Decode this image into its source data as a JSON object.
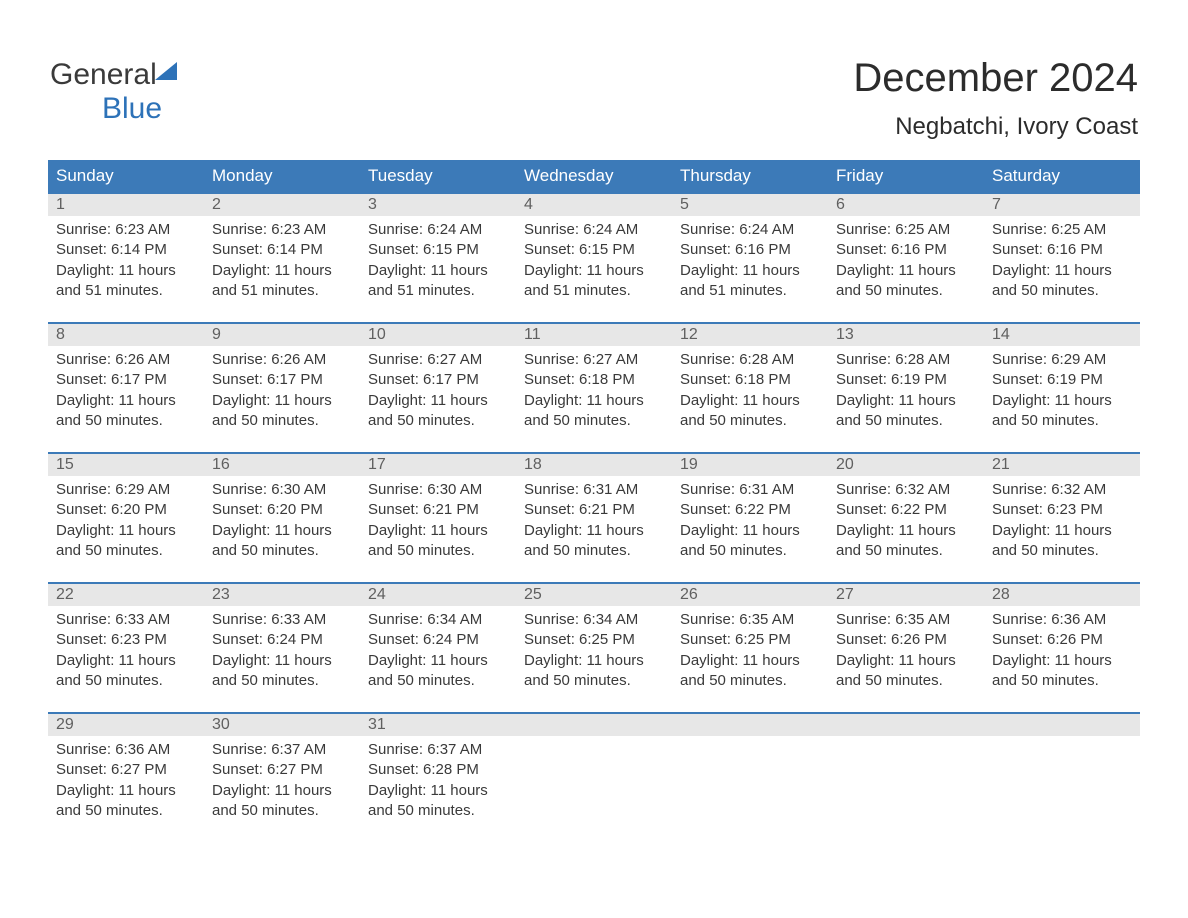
{
  "logo": {
    "word1": "General",
    "word2": "Blue"
  },
  "title": "December 2024",
  "location": "Negbatchi, Ivory Coast",
  "colors": {
    "header_bg": "#3c7ab8",
    "header_fg": "#ffffff",
    "daynum_bg": "#e7e7e7",
    "week_border": "#3c7ab8",
    "text": "#3a3a3a",
    "logo_blue": "#2d72b8"
  },
  "day_names": [
    "Sunday",
    "Monday",
    "Tuesday",
    "Wednesday",
    "Thursday",
    "Friday",
    "Saturday"
  ],
  "weeks": [
    [
      {
        "n": "1",
        "sr": "Sunrise: 6:23 AM",
        "ss": "Sunset: 6:14 PM",
        "d1": "Daylight: 11 hours",
        "d2": "and 51 minutes."
      },
      {
        "n": "2",
        "sr": "Sunrise: 6:23 AM",
        "ss": "Sunset: 6:14 PM",
        "d1": "Daylight: 11 hours",
        "d2": "and 51 minutes."
      },
      {
        "n": "3",
        "sr": "Sunrise: 6:24 AM",
        "ss": "Sunset: 6:15 PM",
        "d1": "Daylight: 11 hours",
        "d2": "and 51 minutes."
      },
      {
        "n": "4",
        "sr": "Sunrise: 6:24 AM",
        "ss": "Sunset: 6:15 PM",
        "d1": "Daylight: 11 hours",
        "d2": "and 51 minutes."
      },
      {
        "n": "5",
        "sr": "Sunrise: 6:24 AM",
        "ss": "Sunset: 6:16 PM",
        "d1": "Daylight: 11 hours",
        "d2": "and 51 minutes."
      },
      {
        "n": "6",
        "sr": "Sunrise: 6:25 AM",
        "ss": "Sunset: 6:16 PM",
        "d1": "Daylight: 11 hours",
        "d2": "and 50 minutes."
      },
      {
        "n": "7",
        "sr": "Sunrise: 6:25 AM",
        "ss": "Sunset: 6:16 PM",
        "d1": "Daylight: 11 hours",
        "d2": "and 50 minutes."
      }
    ],
    [
      {
        "n": "8",
        "sr": "Sunrise: 6:26 AM",
        "ss": "Sunset: 6:17 PM",
        "d1": "Daylight: 11 hours",
        "d2": "and 50 minutes."
      },
      {
        "n": "9",
        "sr": "Sunrise: 6:26 AM",
        "ss": "Sunset: 6:17 PM",
        "d1": "Daylight: 11 hours",
        "d2": "and 50 minutes."
      },
      {
        "n": "10",
        "sr": "Sunrise: 6:27 AM",
        "ss": "Sunset: 6:17 PM",
        "d1": "Daylight: 11 hours",
        "d2": "and 50 minutes."
      },
      {
        "n": "11",
        "sr": "Sunrise: 6:27 AM",
        "ss": "Sunset: 6:18 PM",
        "d1": "Daylight: 11 hours",
        "d2": "and 50 minutes."
      },
      {
        "n": "12",
        "sr": "Sunrise: 6:28 AM",
        "ss": "Sunset: 6:18 PM",
        "d1": "Daylight: 11 hours",
        "d2": "and 50 minutes."
      },
      {
        "n": "13",
        "sr": "Sunrise: 6:28 AM",
        "ss": "Sunset: 6:19 PM",
        "d1": "Daylight: 11 hours",
        "d2": "and 50 minutes."
      },
      {
        "n": "14",
        "sr": "Sunrise: 6:29 AM",
        "ss": "Sunset: 6:19 PM",
        "d1": "Daylight: 11 hours",
        "d2": "and 50 minutes."
      }
    ],
    [
      {
        "n": "15",
        "sr": "Sunrise: 6:29 AM",
        "ss": "Sunset: 6:20 PM",
        "d1": "Daylight: 11 hours",
        "d2": "and 50 minutes."
      },
      {
        "n": "16",
        "sr": "Sunrise: 6:30 AM",
        "ss": "Sunset: 6:20 PM",
        "d1": "Daylight: 11 hours",
        "d2": "and 50 minutes."
      },
      {
        "n": "17",
        "sr": "Sunrise: 6:30 AM",
        "ss": "Sunset: 6:21 PM",
        "d1": "Daylight: 11 hours",
        "d2": "and 50 minutes."
      },
      {
        "n": "18",
        "sr": "Sunrise: 6:31 AM",
        "ss": "Sunset: 6:21 PM",
        "d1": "Daylight: 11 hours",
        "d2": "and 50 minutes."
      },
      {
        "n": "19",
        "sr": "Sunrise: 6:31 AM",
        "ss": "Sunset: 6:22 PM",
        "d1": "Daylight: 11 hours",
        "d2": "and 50 minutes."
      },
      {
        "n": "20",
        "sr": "Sunrise: 6:32 AM",
        "ss": "Sunset: 6:22 PM",
        "d1": "Daylight: 11 hours",
        "d2": "and 50 minutes."
      },
      {
        "n": "21",
        "sr": "Sunrise: 6:32 AM",
        "ss": "Sunset: 6:23 PM",
        "d1": "Daylight: 11 hours",
        "d2": "and 50 minutes."
      }
    ],
    [
      {
        "n": "22",
        "sr": "Sunrise: 6:33 AM",
        "ss": "Sunset: 6:23 PM",
        "d1": "Daylight: 11 hours",
        "d2": "and 50 minutes."
      },
      {
        "n": "23",
        "sr": "Sunrise: 6:33 AM",
        "ss": "Sunset: 6:24 PM",
        "d1": "Daylight: 11 hours",
        "d2": "and 50 minutes."
      },
      {
        "n": "24",
        "sr": "Sunrise: 6:34 AM",
        "ss": "Sunset: 6:24 PM",
        "d1": "Daylight: 11 hours",
        "d2": "and 50 minutes."
      },
      {
        "n": "25",
        "sr": "Sunrise: 6:34 AM",
        "ss": "Sunset: 6:25 PM",
        "d1": "Daylight: 11 hours",
        "d2": "and 50 minutes."
      },
      {
        "n": "26",
        "sr": "Sunrise: 6:35 AM",
        "ss": "Sunset: 6:25 PM",
        "d1": "Daylight: 11 hours",
        "d2": "and 50 minutes."
      },
      {
        "n": "27",
        "sr": "Sunrise: 6:35 AM",
        "ss": "Sunset: 6:26 PM",
        "d1": "Daylight: 11 hours",
        "d2": "and 50 minutes."
      },
      {
        "n": "28",
        "sr": "Sunrise: 6:36 AM",
        "ss": "Sunset: 6:26 PM",
        "d1": "Daylight: 11 hours",
        "d2": "and 50 minutes."
      }
    ],
    [
      {
        "n": "29",
        "sr": "Sunrise: 6:36 AM",
        "ss": "Sunset: 6:27 PM",
        "d1": "Daylight: 11 hours",
        "d2": "and 50 minutes."
      },
      {
        "n": "30",
        "sr": "Sunrise: 6:37 AM",
        "ss": "Sunset: 6:27 PM",
        "d1": "Daylight: 11 hours",
        "d2": "and 50 minutes."
      },
      {
        "n": "31",
        "sr": "Sunrise: 6:37 AM",
        "ss": "Sunset: 6:28 PM",
        "d1": "Daylight: 11 hours",
        "d2": "and 50 minutes."
      },
      {
        "empty": true
      },
      {
        "empty": true
      },
      {
        "empty": true
      },
      {
        "empty": true
      }
    ]
  ]
}
